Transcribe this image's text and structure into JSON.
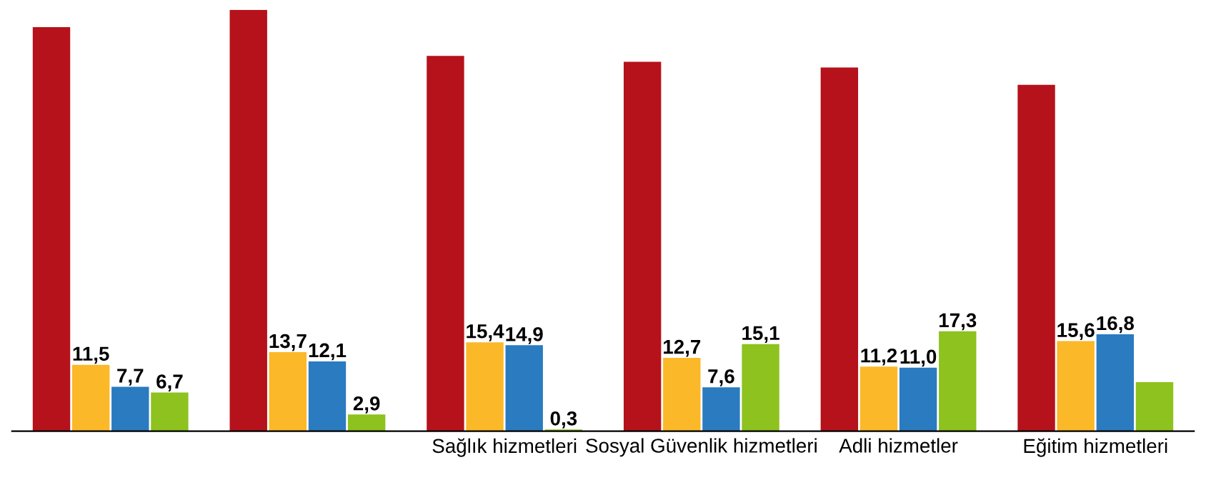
{
  "chart_data": {
    "type": "bar",
    "categories": [
      null,
      null,
      "Sağlık hizmetleri",
      "Sosyal Güvenlik hizmetleri",
      "Adli hizmetler",
      "Eğitim hizmetleri"
    ],
    "series": [
      {
        "color": "#b5121b",
        "values": [
          70,
          73,
          65,
          64,
          63,
          60
        ],
        "value_labels": [
          null,
          null,
          null,
          null,
          null,
          null
        ]
      },
      {
        "color": "#fbb829",
        "values": [
          11.5,
          13.7,
          15.4,
          12.7,
          11.2,
          15.6
        ],
        "value_labels": [
          "11,5",
          "13,7",
          "15,4",
          "12,7",
          "11,2",
          "15,6"
        ]
      },
      {
        "color": "#2a7bc0",
        "values": [
          7.7,
          12.1,
          14.9,
          7.6,
          11.0,
          16.8
        ],
        "value_labels": [
          "7,7",
          "12,1",
          "14,9",
          "7,6",
          "11,0",
          "16,8"
        ]
      },
      {
        "color": "#8dc21f",
        "values": [
          6.7,
          2.9,
          0.3,
          15.1,
          17.3,
          8.5
        ],
        "value_labels": [
          "6,7",
          "2,9",
          "0,3",
          "15,1",
          "17,3",
          null
        ]
      }
    ],
    "grid": false,
    "legend": false
  }
}
